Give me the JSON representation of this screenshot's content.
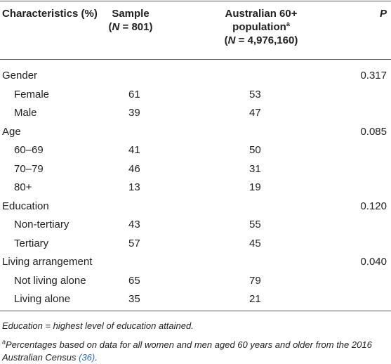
{
  "header": {
    "columns": [
      {
        "lines": [
          [
            {
              "t": "Characteristics (%)"
            }
          ]
        ]
      },
      {
        "lines": [
          [
            {
              "t": "Sample"
            }
          ],
          [
            {
              "t": "("
            },
            {
              "t": "N",
              "i": true
            },
            {
              "t": " = 801)"
            }
          ]
        ]
      },
      {
        "lines": [
          [
            {
              "t": "Australian 60+"
            }
          ],
          [
            {
              "t": "population"
            },
            {
              "t": "a",
              "sup": true
            }
          ],
          [
            {
              "t": "("
            },
            {
              "t": "N",
              "i": true
            },
            {
              "t": " = 4,976,160)"
            }
          ]
        ]
      },
      {
        "lines": [
          [
            {
              "t": "P",
              "i": true
            }
          ]
        ]
      }
    ]
  },
  "groups": [
    {
      "label": "Gender",
      "p": "0.317",
      "items": [
        {
          "label": "Female",
          "sample": 61,
          "population": 53
        },
        {
          "label": "Male",
          "sample": 39,
          "population": 47
        }
      ]
    },
    {
      "label": "Age",
      "p": "0.085",
      "items": [
        {
          "label": "60–69",
          "sample": 41,
          "population": 50
        },
        {
          "label": "70–79",
          "sample": 46,
          "population": 31
        },
        {
          "label": "80+",
          "sample": 13,
          "population": 19
        }
      ]
    },
    {
      "label": "Education",
      "p": "0.120",
      "items": [
        {
          "label": "Non-tertiary",
          "sample": 43,
          "population": 55
        },
        {
          "label": "Tertiary",
          "sample": 57,
          "population": 45
        }
      ]
    },
    {
      "label": "Living arrangement",
      "p": "0.040",
      "items": [
        {
          "label": "Not living alone",
          "sample": 65,
          "population": 79
        },
        {
          "label": "Living alone",
          "sample": 35,
          "population": 21
        }
      ]
    }
  ],
  "footnotes": [
    [
      {
        "t": "Education = highest level of education attained."
      }
    ],
    [
      {
        "t": "a",
        "sup": true
      },
      {
        "t": "Percentages based on data for all women and men aged 60 years and older from the 2016 Australian Census "
      },
      {
        "t": "(36)",
        "link": true
      },
      {
        "t": "."
      }
    ]
  ]
}
